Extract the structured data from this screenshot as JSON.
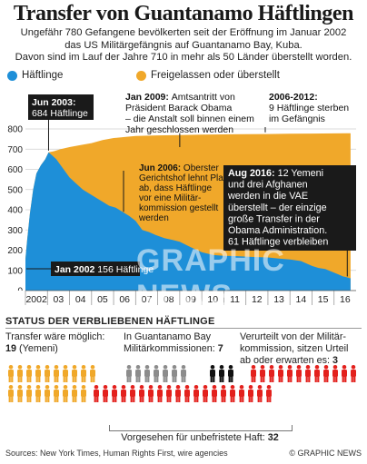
{
  "header": {
    "title": "Transfer von Guantanamo Häftlingen",
    "subtitle_lines": [
      "Ungefähr 780 Gefangene bevölkerten seit der Eröffnung im Januar 2002",
      "das US Militärgefängnis auf Guantanamo Bay, Kuba.",
      "Davon sind im Lauf der Jahre 710 in mehr als 50 Länder überstellt worden."
    ]
  },
  "colors": {
    "detained": "#1e8fd8",
    "released": "#f0a82a",
    "dark": "#1a1a1a",
    "red_figure": "#e3211d",
    "grey_figure": "#8c8c8c",
    "black_figure": "#111111",
    "orange_figure": "#f0a82a"
  },
  "chart_data": {
    "type": "area",
    "series": [
      {
        "name": "Häftlinge",
        "color": "#1e8fd8",
        "x": [
          2002.0,
          2002.08,
          2002.2,
          2002.35,
          2002.5,
          2002.7,
          2002.9,
          2003.05,
          2003.2,
          2003.4,
          2003.6,
          2003.8,
          2004.0,
          2004.3,
          2004.6,
          2004.9,
          2005.2,
          2005.5,
          2005.8,
          2006.1,
          2006.4,
          2006.7,
          2007.0,
          2007.3,
          2007.6,
          2007.9,
          2008.3,
          2008.7,
          2009.0,
          2009.5,
          2010.0,
          2010.5,
          2011.0,
          2011.5,
          2012.0,
          2012.5,
          2013.0,
          2013.5,
          2014.0,
          2014.5,
          2015.0,
          2015.3,
          2015.6,
          2015.9,
          2016.2,
          2016.4,
          2016.6,
          2016.7,
          2016.75
        ],
        "y": [
          156,
          250,
          380,
          500,
          580,
          620,
          650,
          684,
          670,
          650,
          620,
          590,
          560,
          530,
          500,
          480,
          460,
          440,
          420,
          410,
          390,
          370,
          345,
          300,
          290,
          275,
          260,
          250,
          242,
          215,
          190,
          176,
          172,
          171,
          168,
          166,
          164,
          158,
          154,
          146,
          122,
          112,
          107,
          93,
          80,
          70,
          65,
          61,
          61
        ]
      },
      {
        "name": "Freigelassen oder überstellt",
        "color": "#f0a82a",
        "x": [
          2002.0,
          2002.08,
          2002.2,
          2002.35,
          2002.5,
          2002.7,
          2002.9,
          2003.05,
          2003.3,
          2003.6,
          2004.0,
          2004.5,
          2005.0,
          2005.5,
          2006.0,
          2006.5,
          2007.0,
          2008.0,
          2009.0,
          2010.0,
          2011.0,
          2012.0,
          2013.0,
          2014.0,
          2015.0,
          2016.0,
          2016.75
        ],
        "y": [
          156,
          250,
          380,
          500,
          580,
          620,
          650,
          684,
          690,
          700,
          710,
          720,
          730,
          745,
          755,
          760,
          765,
          768,
          770,
          772,
          773,
          774,
          775,
          776,
          777,
          778,
          779
        ]
      }
    ],
    "legend": [
      "Häftlinge",
      "Freigelassen oder überstellt"
    ],
    "legend_placement": "top",
    "x_range": [
      2002,
      2017
    ],
    "ylim": [
      0,
      800
    ],
    "yticks": [
      0,
      100,
      200,
      300,
      400,
      500,
      600,
      700,
      800
    ],
    "xtick_labels": [
      "2002",
      "03",
      "04",
      "05",
      "06",
      "07",
      "08",
      "09",
      "10",
      "11",
      "12",
      "13",
      "14",
      "15",
      "16"
    ],
    "grid": true,
    "annotations": [
      {
        "head": "Jun 2003:",
        "body": "684 Häftlinge"
      },
      {
        "head": "Jan 2009:",
        "body": "Amtsantritt von Präsident Barack Obama – die Anstalt soll binnen einem Jahr geschlossen werden"
      },
      {
        "head": "2006-2012:",
        "body": "9 Häftlinge sterben im Gefängnis"
      },
      {
        "head": "Jun 2006:",
        "body": "Oberster Gerichtshof lehnt Plan ab, dass Häftlinge vor eine Militärkommission gestellt werden"
      },
      {
        "head": "Aug 2016:",
        "body": "12 Yemeni und drei Afghanen werden in die VAE überstellt – der einzige große Transfer in der Obama Administration. 61 Häftlinge verbleiben"
      },
      {
        "head": "Jan 2002",
        "body": "156 Häftlinge"
      }
    ]
  },
  "status": {
    "title": "STATUS DER VERBLIEBENEN HÄFTLINGE",
    "groups": [
      {
        "text": "Transfer wäre möglich:",
        "count": "19",
        "suffix": "(Yemeni)",
        "color": "#f0a82a",
        "n": 19
      },
      {
        "text": "In Guantanamo Bay Militärkommissionen:",
        "count": "7",
        "color": "#8c8c8c",
        "n": 7
      },
      {
        "text": "Verurteilt von der Militär- kommission, sitzen Urteil ab oder erwarten es:",
        "count": "3",
        "color": "#111111",
        "n": 3
      },
      {
        "text": "Vorgesehen für unbefristete Haft:",
        "count": "32",
        "color": "#e3211d",
        "n": 32
      }
    ]
  },
  "footer": {
    "sources": "Sources: New York Times, Human Rights First, wire agencies",
    "credit": "© GRAPHIC NEWS"
  },
  "watermark": "GRAPHIC NEWS"
}
